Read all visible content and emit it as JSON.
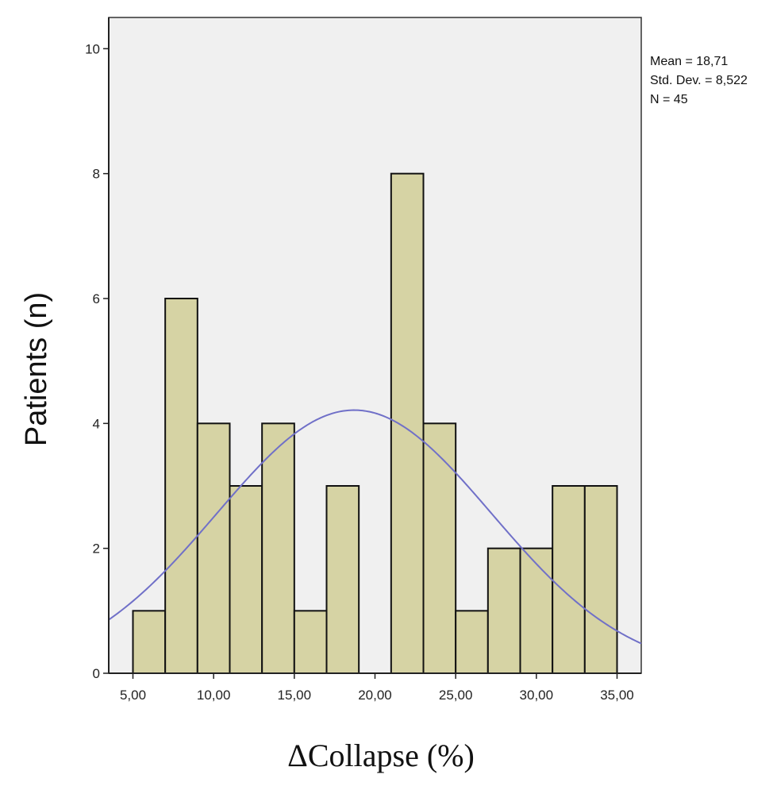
{
  "chart_data": {
    "type": "histogram",
    "xlabel": "ΔCollapse (%)",
    "ylabel": "Patients (n)",
    "xlim": [
      3.5,
      36.5
    ],
    "ylim": [
      0,
      10.5
    ],
    "bin_width": 2,
    "bins": [
      {
        "start": 5,
        "end": 7,
        "count": 1
      },
      {
        "start": 7,
        "end": 9,
        "count": 6
      },
      {
        "start": 9,
        "end": 11,
        "count": 4
      },
      {
        "start": 11,
        "end": 13,
        "count": 3
      },
      {
        "start": 13,
        "end": 15,
        "count": 4
      },
      {
        "start": 15,
        "end": 17,
        "count": 1
      },
      {
        "start": 17,
        "end": 19,
        "count": 3
      },
      {
        "start": 19,
        "end": 21,
        "count": 0
      },
      {
        "start": 21,
        "end": 23,
        "count": 8
      },
      {
        "start": 23,
        "end": 25,
        "count": 4
      },
      {
        "start": 25,
        "end": 27,
        "count": 1
      },
      {
        "start": 27,
        "end": 29,
        "count": 2
      },
      {
        "start": 29,
        "end": 31,
        "count": 2
      },
      {
        "start": 31,
        "end": 33,
        "count": 3
      },
      {
        "start": 33,
        "end": 35,
        "count": 3
      }
    ],
    "x_ticks": [
      {
        "value": 5,
        "label": "5,00"
      },
      {
        "value": 10,
        "label": "10,00"
      },
      {
        "value": 15,
        "label": "15,00"
      },
      {
        "value": 20,
        "label": "20,00"
      },
      {
        "value": 25,
        "label": "25,00"
      },
      {
        "value": 30,
        "label": "30,00"
      },
      {
        "value": 35,
        "label": "35,00"
      }
    ],
    "y_ticks": [
      {
        "value": 0,
        "label": "0"
      },
      {
        "value": 2,
        "label": "2"
      },
      {
        "value": 4,
        "label": "4"
      },
      {
        "value": 6,
        "label": "6"
      },
      {
        "value": 8,
        "label": "8"
      },
      {
        "value": 10,
        "label": "10"
      }
    ],
    "normal_curve": {
      "mean": 18.71,
      "std": 8.522,
      "n": 45
    },
    "stats": {
      "mean_label": "Mean = 18,71",
      "std_label": "Std. Dev. = 8,522",
      "n_label": "N = 45"
    },
    "grid": false,
    "colors": {
      "plot_background": "#f0f0f0",
      "bar_fill": "#d6d3a4",
      "bar_stroke": "#111111",
      "curve": "#7070c8"
    }
  }
}
